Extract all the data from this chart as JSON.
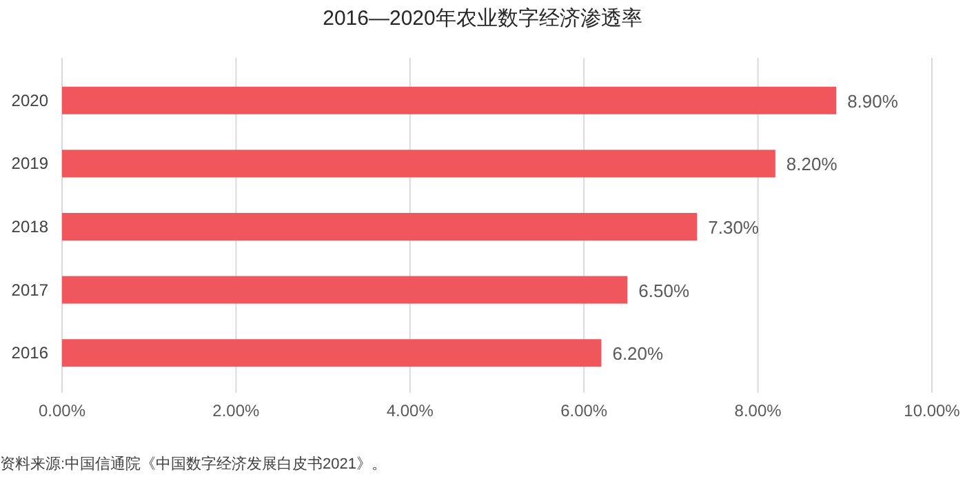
{
  "chart_data": {
    "type": "bar",
    "orientation": "horizontal",
    "title": "2016—2020年农业数字经济渗透率",
    "categories": [
      "2020",
      "2019",
      "2018",
      "2017",
      "2016"
    ],
    "values": [
      8.9,
      8.2,
      7.3,
      6.5,
      6.2
    ],
    "value_labels": [
      "8.90%",
      "8.20%",
      "7.30%",
      "6.50%",
      "6.20%"
    ],
    "color": "#f0575c",
    "xlim": [
      0,
      10
    ],
    "xticks": [
      {
        "value": 0,
        "label": "0.00%"
      },
      {
        "value": 2,
        "label": "2.00%"
      },
      {
        "value": 4,
        "label": "4.00%"
      },
      {
        "value": 6,
        "label": "6.00%"
      },
      {
        "value": 8,
        "label": "8.00%"
      },
      {
        "value": 10,
        "label": "10.00%"
      }
    ],
    "grid": "x",
    "annotations": [
      "资料来源:中国信通院《中国数字经济发展白皮书2021》。"
    ]
  }
}
